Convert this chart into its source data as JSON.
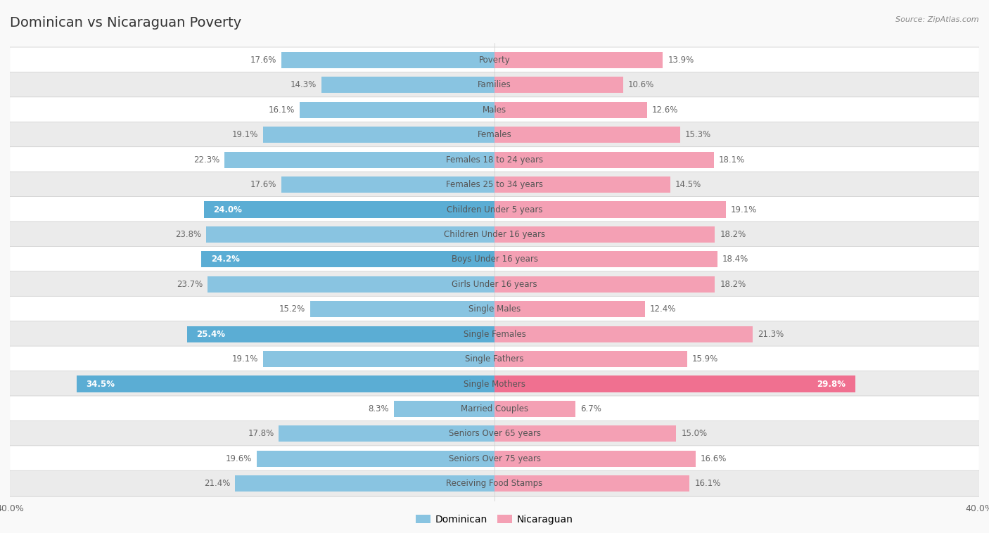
{
  "title": "Dominican vs Nicaraguan Poverty",
  "source": "Source: ZipAtlas.com",
  "categories": [
    "Poverty",
    "Families",
    "Males",
    "Females",
    "Females 18 to 24 years",
    "Females 25 to 34 years",
    "Children Under 5 years",
    "Children Under 16 years",
    "Boys Under 16 years",
    "Girls Under 16 years",
    "Single Males",
    "Single Females",
    "Single Fathers",
    "Single Mothers",
    "Married Couples",
    "Seniors Over 65 years",
    "Seniors Over 75 years",
    "Receiving Food Stamps"
  ],
  "dominican": [
    17.6,
    14.3,
    16.1,
    19.1,
    22.3,
    17.6,
    24.0,
    23.8,
    24.2,
    23.7,
    15.2,
    25.4,
    19.1,
    34.5,
    8.3,
    17.8,
    19.6,
    21.4
  ],
  "nicaraguan": [
    13.9,
    10.6,
    12.6,
    15.3,
    18.1,
    14.5,
    19.1,
    18.2,
    18.4,
    18.2,
    12.4,
    21.3,
    15.9,
    29.8,
    6.7,
    15.0,
    16.6,
    16.1
  ],
  "dom_normal_color": "#89C4E1",
  "dom_highlight_color": "#5BADD4",
  "nic_normal_color": "#F4A0B4",
  "nic_highlight_color": "#F07090",
  "dom_highlight_indices": [
    6,
    8,
    11,
    13
  ],
  "nic_highlight_indices": [
    13
  ],
  "row_colors": [
    "#FFFFFF",
    "#EBEBEB"
  ],
  "axis_limit": 40.0,
  "bar_height": 0.65,
  "legend_labels": [
    "Dominican",
    "Nicaraguan"
  ],
  "title_fontsize": 14,
  "label_fontsize": 8.5,
  "value_fontsize": 8.5,
  "background_color": "#F9F9F9"
}
